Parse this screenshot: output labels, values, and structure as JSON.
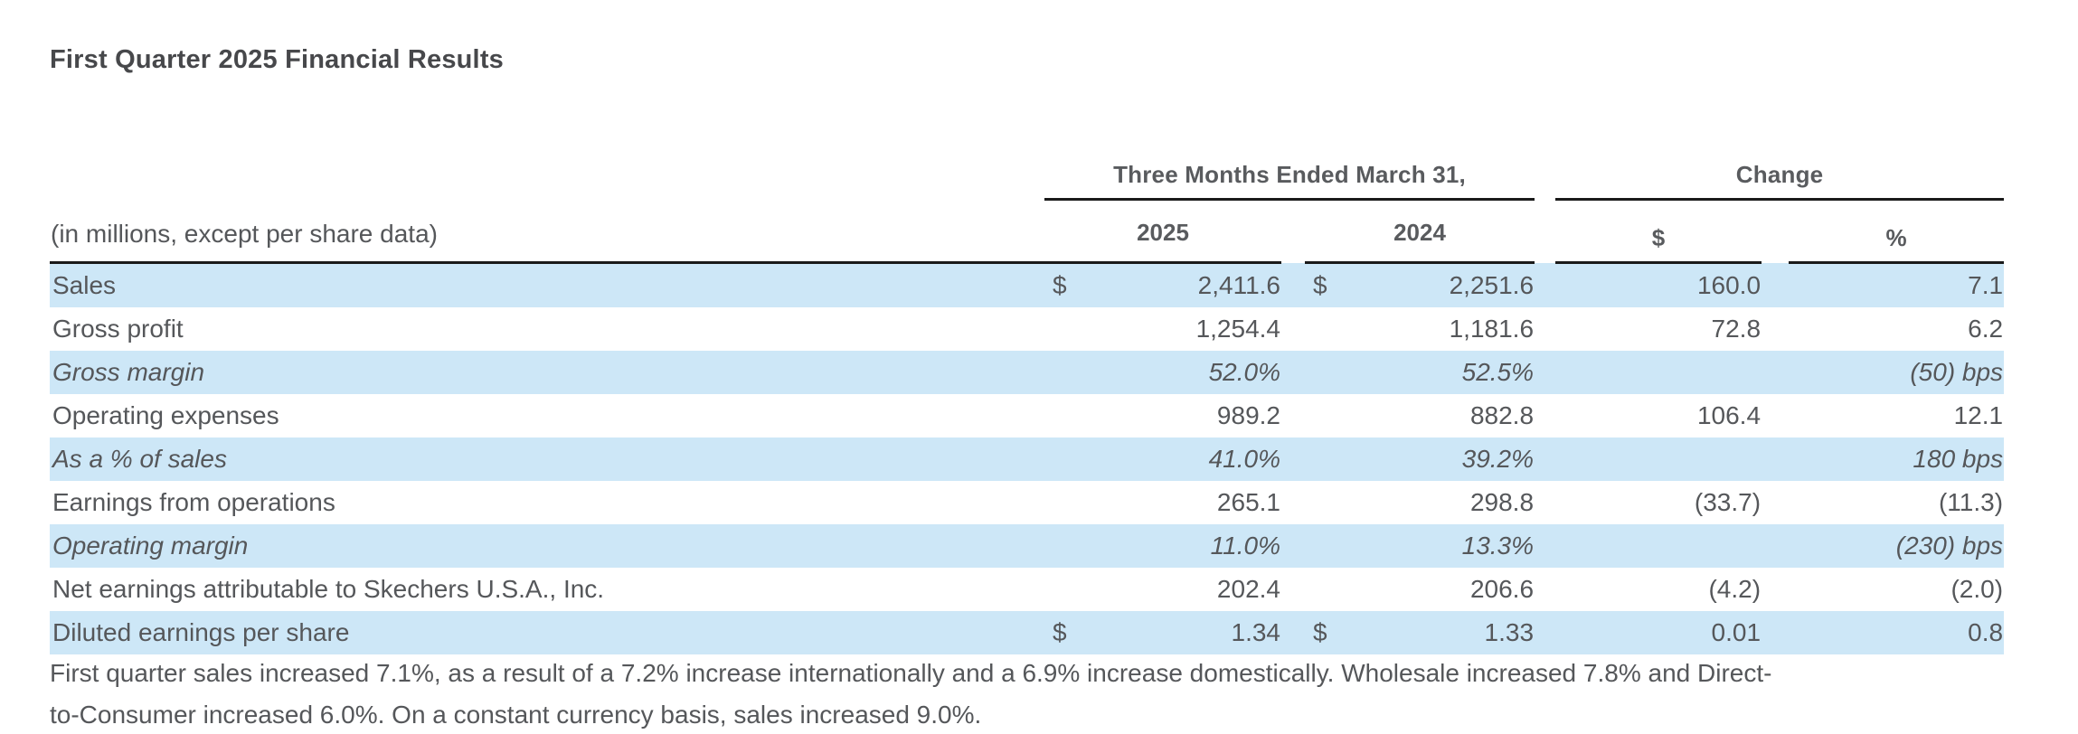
{
  "page": {
    "title": "First Quarter 2025 Financial Results"
  },
  "table": {
    "group_headers": {
      "period": "Three Months Ended March 31,",
      "change": "Change"
    },
    "unit_note": "(in millions, except per share data)",
    "column_headers": {
      "y2025": "2025",
      "y2024": "2024",
      "change_dollar": "$",
      "change_percent": "%"
    },
    "currency_symbol": "$",
    "rows": [
      {
        "label": "Sales",
        "currency": true,
        "italic": false,
        "shaded": true,
        "v2025": "2,411.6",
        "v2024": "2,251.6",
        "chg_usd": "160.0",
        "chg_pct": "7.1"
      },
      {
        "label": "Gross profit",
        "currency": false,
        "italic": false,
        "shaded": false,
        "v2025": "1,254.4",
        "v2024": "1,181.6",
        "chg_usd": "72.8",
        "chg_pct": "6.2"
      },
      {
        "label": "Gross margin",
        "currency": false,
        "italic": true,
        "shaded": true,
        "v2025": "52.0%",
        "v2024": "52.5%",
        "chg_usd": "",
        "chg_pct": "(50) bps"
      },
      {
        "label": "Operating expenses",
        "currency": false,
        "italic": false,
        "shaded": false,
        "v2025": "989.2",
        "v2024": "882.8",
        "chg_usd": "106.4",
        "chg_pct": "12.1"
      },
      {
        "label": "As a % of sales",
        "currency": false,
        "italic": true,
        "shaded": true,
        "v2025": "41.0%",
        "v2024": "39.2%",
        "chg_usd": "",
        "chg_pct": "180 bps"
      },
      {
        "label": "Earnings from operations",
        "currency": false,
        "italic": false,
        "shaded": false,
        "v2025": "265.1",
        "v2024": "298.8",
        "chg_usd": "(33.7)",
        "chg_pct": "(11.3)"
      },
      {
        "label": "Operating margin",
        "currency": false,
        "italic": true,
        "shaded": true,
        "v2025": "11.0%",
        "v2024": "13.3%",
        "chg_usd": "",
        "chg_pct": "(230) bps"
      },
      {
        "label": "Net earnings attributable to Skechers U.S.A., Inc.",
        "currency": false,
        "italic": false,
        "shaded": false,
        "v2025": "202.4",
        "v2024": "206.6",
        "chg_usd": "(4.2)",
        "chg_pct": "(2.0)"
      },
      {
        "label": "Diluted earnings per share",
        "currency": true,
        "italic": false,
        "shaded": true,
        "v2025": "1.34",
        "v2024": "1.33",
        "chg_usd": "0.01",
        "chg_pct": "0.8"
      }
    ]
  },
  "footer": {
    "lines": [
      "First quarter sales increased 7.1%, as a result of a 7.2% increase internationally and a 6.9% increase domestically. Wholesale increased 7.8% and Direct-",
      "to-Consumer increased 6.0%. On a constant currency basis, sales increased 9.0%."
    ]
  },
  "colors": {
    "row_shade": "#cde7f7",
    "rule": "#1a1a1a",
    "text": "#55575a",
    "title_text": "#47484b"
  }
}
